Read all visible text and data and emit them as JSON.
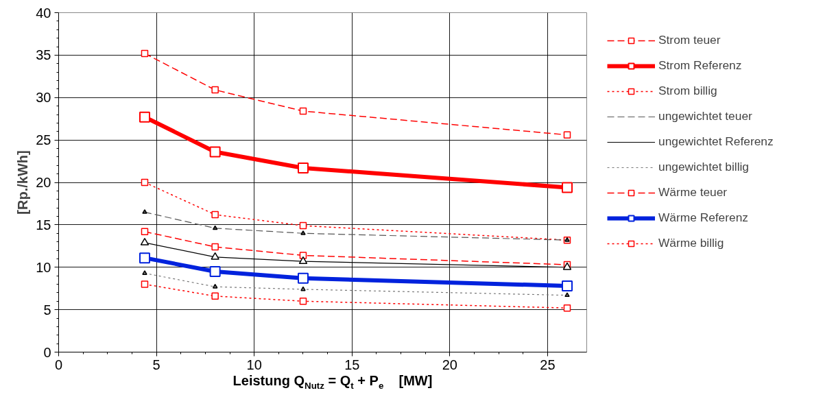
{
  "chart_data": {
    "type": "line",
    "xlabel": "Leistung Q$_{Nutz}$ = Q$_{t}$ + P$_{e}$    [MW]",
    "ylabel": "[Rp./kWh]",
    "x": [
      4.4,
      8,
      12.5,
      26
    ],
    "xlim": [
      0,
      27
    ],
    "xticks": [
      0,
      5,
      10,
      15,
      20,
      25
    ],
    "ylim": [
      0,
      40
    ],
    "yticks": [
      0,
      5,
      10,
      15,
      20,
      25,
      30,
      35,
      40
    ],
    "grid": true,
    "legend": "right",
    "series": [
      {
        "name": "Strom teuer",
        "color": "#ff0000",
        "line_style": "dashed",
        "marker": "square",
        "values": [
          35.2,
          30.9,
          28.4,
          25.6
        ]
      },
      {
        "name": "Strom Referenz",
        "color": "#ff0000",
        "line_style": "solid",
        "marker": "square",
        "values": [
          27.7,
          23.6,
          21.7,
          19.4
        ]
      },
      {
        "name": "Strom billig",
        "color": "#ff0000",
        "line_style": "dotted",
        "marker": "square",
        "values": [
          20.0,
          16.2,
          14.9,
          13.2
        ]
      },
      {
        "name": "ungewichtet teuer",
        "color": "#555555",
        "line_style": "dashed",
        "marker": "triangle",
        "values": [
          16.5,
          14.6,
          14.0,
          13.2
        ]
      },
      {
        "name": "ungewichtet Referenz",
        "color": "#000000",
        "line_style": "solid",
        "marker": "triangle",
        "values": [
          12.9,
          11.2,
          10.7,
          10.0
        ]
      },
      {
        "name": "ungewichtet billig",
        "color": "#777777",
        "line_style": "dotted",
        "marker": "triangle",
        "values": [
          9.3,
          7.7,
          7.4,
          6.7
        ]
      },
      {
        "name": "Wärme teuer",
        "color": "#ff0000",
        "line_style": "dashed",
        "marker": "square",
        "values": [
          14.2,
          12.4,
          11.4,
          10.3
        ]
      },
      {
        "name": "Wärme Referenz",
        "color": "#0022dd",
        "line_style": "solid",
        "marker": "square",
        "values": [
          11.1,
          9.5,
          8.7,
          7.8
        ]
      },
      {
        "name": "Wärme billig",
        "color": "#ff0000",
        "line_style": "dotted",
        "marker": "square",
        "values": [
          8.0,
          6.6,
          6.0,
          5.2
        ]
      }
    ]
  }
}
